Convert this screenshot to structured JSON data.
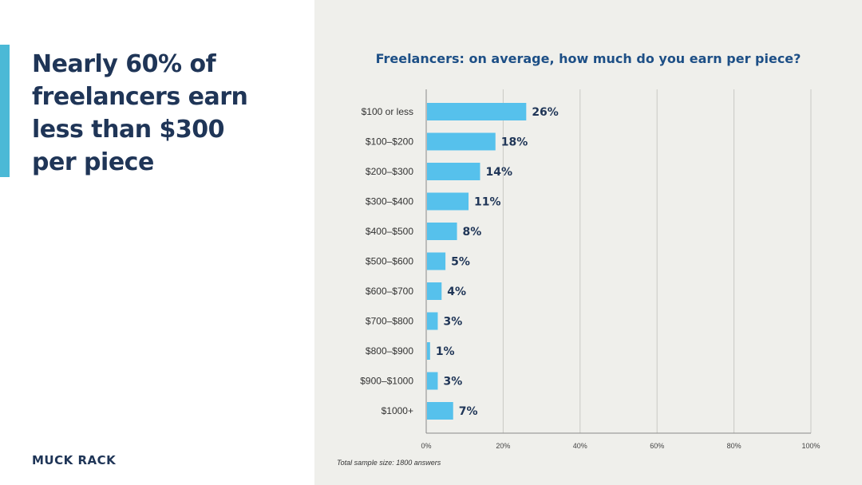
{
  "headline": "Nearly 60% of freelancers earn less than $300 per piece",
  "logo": "MUCK RACK",
  "footnote": "Total sample size: 1800 answers",
  "colors": {
    "bar": "#56c1ec",
    "headline": "#1f3557",
    "title": "#1d4f86",
    "accent": "#4bb9d6"
  },
  "chart_data": {
    "type": "bar",
    "orientation": "horizontal",
    "title": "Freelancers: on average, how much do you earn per piece?",
    "categories": [
      "$100 or less",
      "$100–$200",
      "$200–$300",
      "$300–$400",
      "$400–$500",
      "$500–$600",
      "$600–$700",
      "$700–$800",
      "$800–$900",
      "$900–$1000",
      "$1000+"
    ],
    "values": [
      26,
      18,
      14,
      11,
      8,
      5,
      4,
      3,
      1,
      3,
      7
    ],
    "value_labels": [
      "26%",
      "18%",
      "14%",
      "11%",
      "8%",
      "5%",
      "4%",
      "3%",
      "1%",
      "3%",
      "7%"
    ],
    "xlim": [
      0,
      100
    ],
    "x_ticks": [
      "0%",
      "20%",
      "40%",
      "60%",
      "80%",
      "100%"
    ],
    "grid": true
  }
}
